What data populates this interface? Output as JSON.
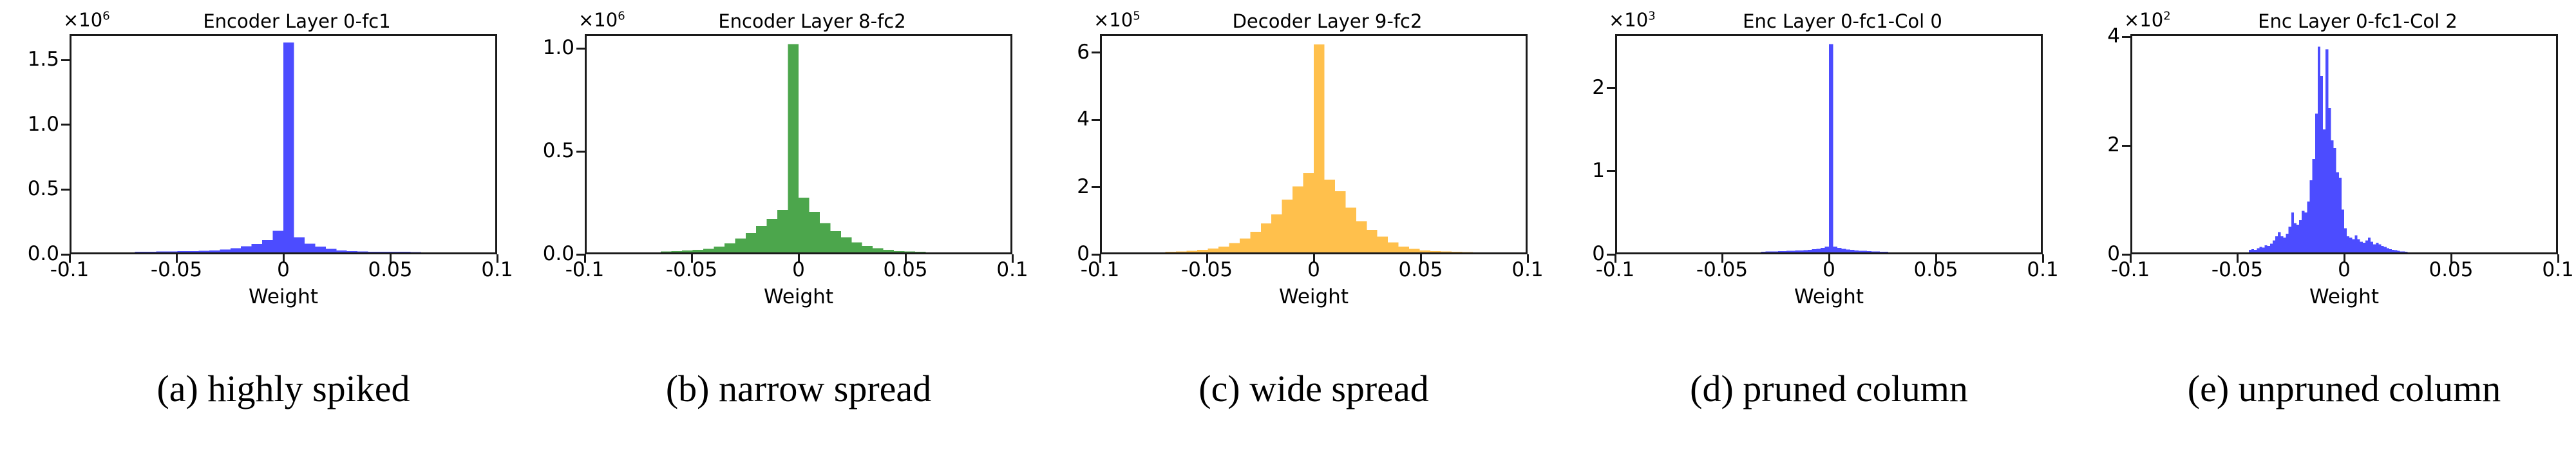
{
  "figure": {
    "background": "#ffffff",
    "text_color": "#000000",
    "axis_color": "#1a1a1a"
  },
  "chart_data": [
    {
      "type": "bar",
      "panel_id": "a",
      "title": "Encoder Layer 0-fc1",
      "scale_base": "×10",
      "scale_exp": "6",
      "color": "#4C4CFF",
      "xlabel": "Weight",
      "xlim": [
        -0.1,
        0.1
      ],
      "ylim": [
        0,
        1.7
      ],
      "grid": false,
      "legend": "none",
      "xticks": [
        {
          "v": -0.1,
          "label": "-0.1"
        },
        {
          "v": -0.05,
          "label": "-0.05"
        },
        {
          "v": 0,
          "label": "0"
        },
        {
          "v": 0.05,
          "label": "0.05"
        },
        {
          "v": 0.1,
          "label": "0.1"
        }
      ],
      "yticks": [
        {
          "v": 0,
          "label": "0.0"
        },
        {
          "v": 0.5,
          "label": "0.5"
        },
        {
          "v": 1.0,
          "label": "1.0"
        },
        {
          "v": 1.5,
          "label": "1.5"
        }
      ],
      "bin_start": -0.07,
      "bin_width": 0.005,
      "heights": [
        0.006,
        0.006,
        0.007,
        0.008,
        0.009,
        0.01,
        0.012,
        0.016,
        0.022,
        0.032,
        0.048,
        0.065,
        0.095,
        0.17,
        1.65,
        0.12,
        0.068,
        0.045,
        0.028,
        0.016,
        0.01,
        0.007,
        0.006,
        0.005,
        0.004,
        0.004,
        0.003
      ],
      "peak_value": 1.65,
      "caption": "(a) highly spiked"
    },
    {
      "type": "bar",
      "panel_id": "b",
      "title": "Encoder Layer 8-fc2",
      "scale_base": "×10",
      "scale_exp": "6",
      "color": "#4CA64C",
      "xlabel": "Weight",
      "xlim": [
        -0.1,
        0.1
      ],
      "ylim": [
        0,
        1.07
      ],
      "grid": false,
      "legend": "none",
      "xticks": [
        {
          "v": -0.1,
          "label": "-0.1"
        },
        {
          "v": -0.05,
          "label": "-0.05"
        },
        {
          "v": 0,
          "label": "0"
        },
        {
          "v": 0.05,
          "label": "0.05"
        },
        {
          "v": 0.1,
          "label": "0.1"
        }
      ],
      "yticks": [
        {
          "v": 0,
          "label": "0.0"
        },
        {
          "v": 0.5,
          "label": "0.5"
        },
        {
          "v": 1.0,
          "label": "1.0"
        }
      ],
      "bin_start": -0.065,
      "bin_width": 0.005,
      "heights": [
        0.004,
        0.006,
        0.009,
        0.013,
        0.018,
        0.028,
        0.045,
        0.068,
        0.095,
        0.13,
        0.165,
        0.21,
        1.03,
        0.27,
        0.2,
        0.145,
        0.105,
        0.075,
        0.05,
        0.032,
        0.02,
        0.012,
        0.007,
        0.004,
        0.003
      ],
      "peak_value": 1.03,
      "caption": "(b) narrow spread"
    },
    {
      "type": "bar",
      "panel_id": "c",
      "title": "Decoder Layer 9-fc2",
      "scale_base": "×10",
      "scale_exp": "5",
      "color": "#FFC04C",
      "xlabel": "Weight",
      "xlim": [
        -0.1,
        0.1
      ],
      "ylim": [
        0,
        6.55
      ],
      "grid": false,
      "legend": "none",
      "xticks": [
        {
          "v": -0.1,
          "label": "-0.1"
        },
        {
          "v": -0.05,
          "label": "-0.05"
        },
        {
          "v": 0,
          "label": "0"
        },
        {
          "v": 0.05,
          "label": "0.05"
        },
        {
          "v": 0.1,
          "label": "0.1"
        }
      ],
      "yticks": [
        {
          "v": 0,
          "label": "0"
        },
        {
          "v": 2,
          "label": "2"
        },
        {
          "v": 4,
          "label": "4"
        },
        {
          "v": 6,
          "label": "6"
        }
      ],
      "bin_start": -0.07,
      "bin_width": 0.005,
      "heights": [
        0.02,
        0.03,
        0.05,
        0.08,
        0.12,
        0.18,
        0.28,
        0.42,
        0.62,
        0.88,
        1.15,
        1.6,
        2.0,
        2.4,
        6.3,
        2.2,
        1.85,
        1.35,
        0.95,
        0.68,
        0.48,
        0.3,
        0.18,
        0.11,
        0.06,
        0.04,
        0.025,
        0.015,
        0.01
      ],
      "peak_value": 6.3,
      "caption": "(c) wide spread"
    },
    {
      "type": "bar",
      "panel_id": "d",
      "title": "Enc Layer 0-fc1-Col 0",
      "scale_base": "×10",
      "scale_exp": "3",
      "color": "#4C4CFF",
      "xlabel": "Weight",
      "xlim": [
        -0.1,
        0.1
      ],
      "ylim": [
        0,
        2.65
      ],
      "grid": false,
      "legend": "none",
      "xticks": [
        {
          "v": -0.1,
          "label": "-0.1"
        },
        {
          "v": -0.05,
          "label": "-0.05"
        },
        {
          "v": 0,
          "label": "0"
        },
        {
          "v": 0.05,
          "label": "0.05"
        },
        {
          "v": 0.1,
          "label": "0.1"
        }
      ],
      "yticks": [
        {
          "v": 0,
          "label": "0"
        },
        {
          "v": 1,
          "label": "1"
        },
        {
          "v": 2,
          "label": "2"
        }
      ],
      "bin_start": -0.032,
      "bin_width": 0.002,
      "heights": [
        0.008,
        0.01,
        0.012,
        0.012,
        0.015,
        0.015,
        0.018,
        0.02,
        0.022,
        0.025,
        0.028,
        0.032,
        0.038,
        0.045,
        0.055,
        0.07,
        2.55,
        0.07,
        0.055,
        0.045,
        0.035,
        0.03,
        0.025,
        0.02,
        0.018,
        0.015,
        0.012,
        0.01,
        0.008,
        0.006
      ],
      "peak_value": 2.55,
      "caption": "(d) pruned column"
    },
    {
      "type": "bar",
      "panel_id": "e",
      "title": "Enc Layer 0-fc1-Col 2",
      "scale_base": "×10",
      "scale_exp": "2",
      "color": "#4C4CFF",
      "xlabel": "Weight",
      "xlim": [
        -0.1,
        0.1
      ],
      "ylim": [
        0,
        4.05
      ],
      "grid": false,
      "legend": "none",
      "xticks": [
        {
          "v": -0.1,
          "label": "-0.1"
        },
        {
          "v": -0.05,
          "label": "-0.05"
        },
        {
          "v": 0,
          "label": "0"
        },
        {
          "v": 0.05,
          "label": "0.05"
        },
        {
          "v": 0.1,
          "label": "0.1"
        }
      ],
      "yticks": [
        {
          "v": 0,
          "label": "0"
        },
        {
          "v": 2,
          "label": "2"
        },
        {
          "v": 4,
          "label": "4"
        }
      ],
      "bin_start": -0.045,
      "bin_width": 0.00125,
      "heights": [
        0.05,
        0.06,
        0.05,
        0.08,
        0.1,
        0.09,
        0.13,
        0.12,
        0.16,
        0.22,
        0.3,
        0.38,
        0.3,
        0.28,
        0.35,
        0.48,
        0.75,
        0.55,
        0.52,
        0.6,
        0.78,
        0.75,
        0.95,
        1.35,
        1.75,
        2.6,
        3.85,
        3.3,
        2.3,
        3.8,
        2.7,
        2.1,
        1.95,
        1.5,
        1.4,
        0.8,
        0.45,
        0.3,
        0.28,
        0.25,
        0.32,
        0.25,
        0.2,
        0.18,
        0.22,
        0.28,
        0.2,
        0.15,
        0.18,
        0.15,
        0.12,
        0.1,
        0.08,
        0.06,
        0.05,
        0.04,
        0.03,
        0.02,
        0.02,
        0.01
      ],
      "peak_value": 3.85,
      "caption": "(e) unpruned column"
    }
  ]
}
